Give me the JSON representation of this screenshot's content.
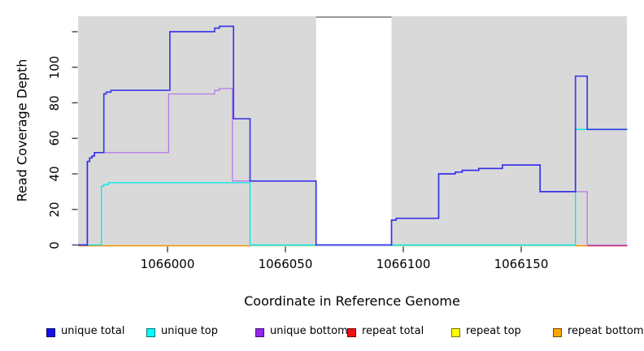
{
  "title": "",
  "axes": {
    "x_label": "Coordinate in Reference Genome",
    "y_label": "Read Coverage Depth",
    "x_ticks": [
      1066000,
      1066050,
      1066100,
      1066150
    ],
    "y_ticks": [
      0,
      20,
      40,
      60,
      80,
      100
    ],
    "y_unlabeled_ticks": [
      120
    ]
  },
  "chart_data": {
    "type": "line",
    "subtype": "step-coverage",
    "xlabel": "Coordinate in Reference Genome",
    "ylabel": "Read Coverage Depth",
    "xlim": [
      1065962,
      1066195
    ],
    "ylim": [
      0,
      129
    ],
    "panel_bg": "#d9d9d9",
    "grid": "off",
    "masked_region": {
      "from": 1066063,
      "to": 1066095,
      "fill": "#ffffff",
      "top_edge_color": "#999999"
    },
    "series": [
      {
        "name": "unique total",
        "color": "#2121e8",
        "steps": [
          [
            1065962,
            0
          ],
          [
            1065966,
            47
          ],
          [
            1065967,
            49
          ],
          [
            1065968,
            50
          ],
          [
            1065969,
            52
          ],
          [
            1065973,
            85
          ],
          [
            1065974,
            86
          ],
          [
            1065976,
            87
          ],
          [
            1066001,
            120
          ],
          [
            1066020,
            122
          ],
          [
            1066022,
            123
          ],
          [
            1066028,
            71
          ],
          [
            1066035,
            36
          ],
          [
            1066063,
            0
          ],
          [
            1066095,
            14
          ],
          [
            1066097,
            15
          ],
          [
            1066115,
            40
          ],
          [
            1066122,
            41
          ],
          [
            1066125,
            42
          ],
          [
            1066132,
            43
          ],
          [
            1066142,
            45
          ],
          [
            1066158,
            30
          ],
          [
            1066173,
            95
          ],
          [
            1066178,
            65
          ]
        ],
        "end": 1066195
      },
      {
        "name": "unique top",
        "color": "#00e7e7",
        "steps": [
          [
            1065962,
            0
          ],
          [
            1065972,
            33
          ],
          [
            1065973,
            34
          ],
          [
            1065975,
            35
          ],
          [
            1066035,
            0
          ],
          [
            1066173,
            65
          ]
        ],
        "end": 1066195
      },
      {
        "name": "unique bottom",
        "color": "#b47ae8",
        "steps": [
          [
            1065962,
            0
          ],
          [
            1065966,
            47
          ],
          [
            1065967,
            49
          ],
          [
            1065968,
            50
          ],
          [
            1065969,
            52
          ],
          [
            1066000.5,
            85
          ],
          [
            1066020,
            87
          ],
          [
            1066022,
            88
          ],
          [
            1066027.5,
            36
          ],
          [
            1066063,
            0
          ],
          [
            1066095,
            14
          ],
          [
            1066097,
            15
          ],
          [
            1066115,
            40
          ],
          [
            1066122,
            41
          ],
          [
            1066125,
            42
          ],
          [
            1066132,
            43
          ],
          [
            1066142,
            45
          ],
          [
            1066158,
            30
          ],
          [
            1066178,
            0
          ]
        ],
        "end": 1066195
      },
      {
        "name": "repeat total",
        "color": "#e01515",
        "steps": [
          [
            1065962,
            0
          ]
        ],
        "end": 1066195
      },
      {
        "name": "repeat top",
        "color": "#f5f500",
        "steps": [
          [
            1065962,
            0
          ]
        ],
        "end": 1066195
      },
      {
        "name": "repeat bottom",
        "color": "#ff9100",
        "steps": [
          [
            1065962,
            0
          ]
        ],
        "end": 1066195
      }
    ],
    "baseline_segments": [
      {
        "from": 1065962,
        "to": 1066035,
        "color": "#ff9100"
      },
      {
        "from": 1066035,
        "to": 1066173,
        "color": "#a7d9a0"
      },
      {
        "from": 1066173,
        "to": 1066178,
        "color": "#ff9100"
      },
      {
        "from": 1066178,
        "to": 1066195,
        "color": "#dc2a4c"
      }
    ]
  },
  "legend": {
    "items": [
      {
        "label": "unique total",
        "color": "#1111ee"
      },
      {
        "label": "unique top",
        "color": "#00ffff"
      },
      {
        "label": "unique bottom",
        "color": "#9127eb"
      },
      {
        "label": "repeat total",
        "color": "#ee1111"
      },
      {
        "label": "repeat top",
        "color": "#ffff00"
      },
      {
        "label": "repeat bottom",
        "color": "#ffa500"
      }
    ]
  }
}
